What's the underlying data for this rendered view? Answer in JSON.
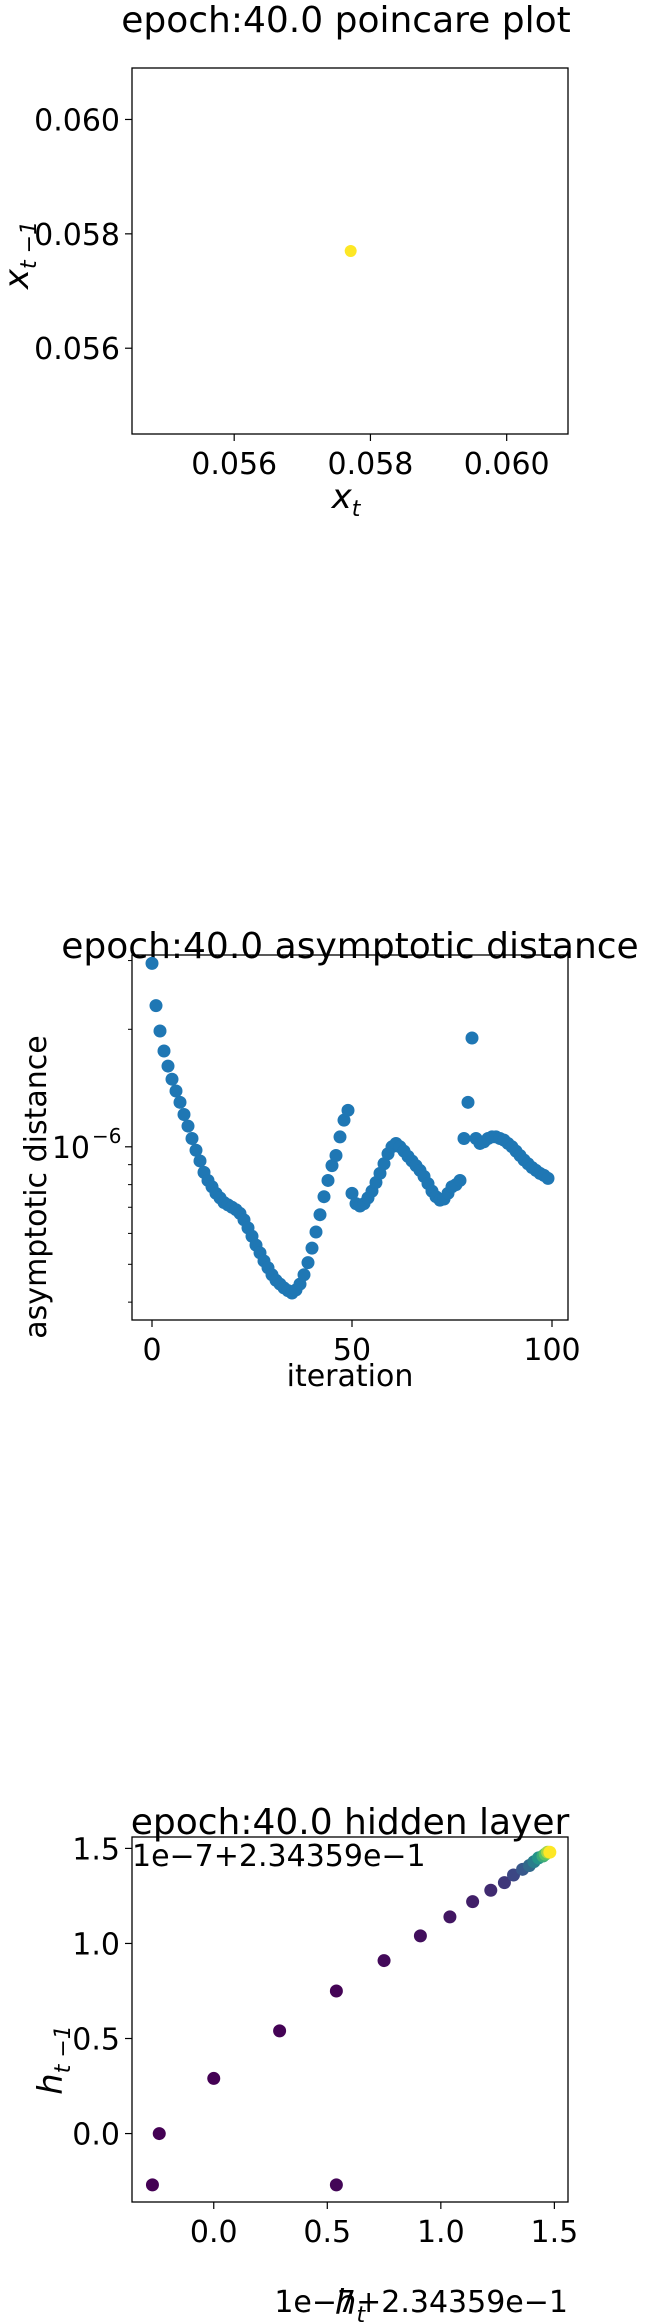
{
  "chart_data": [
    {
      "type": "scatter",
      "title": "epoch:40.0 poincare plot",
      "xlabel": "x_t",
      "ylabel": "x_{t-1}",
      "xlim": [
        0.0545,
        0.0609
      ],
      "ylim": [
        0.0545,
        0.0609
      ],
      "xticks": [
        {
          "value": 0.056,
          "label": "0.056"
        },
        {
          "value": 0.058,
          "label": "0.058"
        },
        {
          "value": 0.06,
          "label": "0.060"
        }
      ],
      "yticks": [
        {
          "value": 0.056,
          "label": "0.056"
        },
        {
          "value": 0.058,
          "label": "0.058"
        },
        {
          "value": 0.06,
          "label": "0.060"
        }
      ],
      "grid": false,
      "color": "#fde725",
      "points": [
        [
          0.05771,
          0.0577
        ]
      ]
    },
    {
      "type": "scatter",
      "title": "epoch:40.0 asymptotic distance",
      "xlabel": "iteration",
      "ylabel": "asymptotic distance",
      "yscale": "log",
      "xlim": [
        -5,
        104
      ],
      "ylim": [
        3.6e-07,
        3.1e-06
      ],
      "xticks": [
        {
          "value": 0,
          "label": "0"
        },
        {
          "value": 50,
          "label": "50"
        },
        {
          "value": 100,
          "label": "100"
        }
      ],
      "yticks": [
        {
          "value": 1e-06,
          "label": "10",
          "sup": "−6"
        }
      ],
      "yminor": [
        4e-07,
        5e-07,
        6e-07,
        7e-07,
        8e-07,
        9e-07,
        2e-06,
        3e-06
      ],
      "grid": false,
      "color": "#1f77b4",
      "x": [
        0,
        1,
        2,
        3,
        4,
        5,
        6,
        7,
        8,
        9,
        10,
        11,
        12,
        13,
        14,
        15,
        16,
        17,
        18,
        19,
        20,
        21,
        22,
        23,
        24,
        25,
        26,
        27,
        28,
        29,
        30,
        31,
        32,
        33,
        34,
        35,
        36,
        37,
        38,
        39,
        40,
        41,
        42,
        43,
        44,
        45,
        46,
        47,
        48,
        49,
        50,
        51,
        52,
        53,
        54,
        55,
        56,
        57,
        58,
        59,
        60,
        61,
        62,
        63,
        64,
        65,
        66,
        67,
        68,
        69,
        70,
        71,
        72,
        73,
        74,
        75,
        76,
        77,
        78,
        79,
        80,
        81,
        82,
        83,
        84,
        85,
        86,
        87,
        88,
        89,
        90,
        91,
        92,
        93,
        94,
        95,
        96,
        97,
        98,
        99
      ],
      "y": [
        2.95e-06,
        2.3e-06,
        1.98e-06,
        1.76e-06,
        1.61e-06,
        1.49e-06,
        1.39e-06,
        1.3e-06,
        1.21e-06,
        1.13e-06,
        1.05e-06,
        9.8e-07,
        9.2e-07,
        8.6e-07,
        8.2e-07,
        7.9e-07,
        7.6e-07,
        7.4e-07,
        7.2e-07,
        7.1e-07,
        7e-07,
        6.9e-07,
        6.75e-07,
        6.5e-07,
        6.2e-07,
        5.9e-07,
        5.6e-07,
        5.35e-07,
        5.1e-07,
        4.9e-07,
        4.7e-07,
        4.55e-07,
        4.45e-07,
        4.35e-07,
        4.28e-07,
        4.22e-07,
        4.3e-07,
        4.45e-07,
        4.7e-07,
        5.05e-07,
        5.5e-07,
        6.05e-07,
        6.7e-07,
        7.45e-07,
        8.2e-07,
        8.95e-07,
        9.5e-07,
        1.06e-06,
        1.17e-06,
        1.24e-06,
        7.6e-07,
        7.15e-07,
        7.05e-07,
        7.15e-07,
        7.4e-07,
        7.7e-07,
        8.1e-07,
        8.55e-07,
        9.05e-07,
        9.6e-07,
        1e-06,
        1.02e-06,
        1e-06,
        9.75e-07,
        9.45e-07,
        9.2e-07,
        8.95e-07,
        8.7e-07,
        8.4e-07,
        8.05e-07,
        7.7e-07,
        7.45e-07,
        7.3e-07,
        7.35e-07,
        7.6e-07,
        7.9e-07,
        8e-07,
        8.2e-07,
        1.05e-06,
        1.3e-06,
        1.9e-06,
        1.05e-06,
        1.02e-06,
        1.03e-06,
        1.05e-06,
        1.06e-06,
        1.06e-06,
        1.05e-06,
        1.04e-06,
        1.02e-06,
        1e-06,
        9.75e-07,
        9.5e-07,
        9.25e-07,
        9.05e-07,
        8.85e-07,
        8.7e-07,
        8.55e-07,
        8.45e-07,
        8.3e-07
      ]
    },
    {
      "type": "scatter",
      "title": "epoch:40.0 hidden layer",
      "xlabel": "h_t",
      "ylabel": "h_{t-1}",
      "y_offset_text": "1e−7+2.34359e−1",
      "x_offset_text": "1e−7+2.34359e−1",
      "xlim": [
        -0.36,
        1.56
      ],
      "ylim": [
        -0.36,
        1.56
      ],
      "xticks": [
        {
          "value": 0.0,
          "label": "0.0"
        },
        {
          "value": 0.5,
          "label": "0.5"
        },
        {
          "value": 1.0,
          "label": "1.0"
        },
        {
          "value": 1.5,
          "label": "1.5"
        }
      ],
      "yticks": [
        {
          "value": 0.0,
          "label": "0.0"
        },
        {
          "value": 0.5,
          "label": "0.5"
        },
        {
          "value": 1.0,
          "label": "1.0"
        },
        {
          "value": 1.5,
          "label": "1.5"
        }
      ],
      "grid": false,
      "colormap": [
        "#440154",
        "#3b528b",
        "#21918c",
        "#5ec962",
        "#fde725"
      ],
      "points": [
        [
          -0.27,
          -0.27
        ],
        [
          -0.24,
          0.0
        ],
        [
          0.0,
          0.29
        ],
        [
          0.29,
          0.54
        ],
        [
          0.54,
          0.75
        ],
        [
          0.54,
          -0.27
        ],
        [
          0.75,
          0.91
        ],
        [
          0.91,
          1.04
        ],
        [
          1.04,
          1.14
        ],
        [
          1.14,
          1.22
        ],
        [
          1.22,
          1.28
        ],
        [
          1.28,
          1.32
        ],
        [
          1.32,
          1.36
        ],
        [
          1.36,
          1.39
        ],
        [
          1.39,
          1.41
        ],
        [
          1.41,
          1.43
        ],
        [
          1.43,
          1.45
        ],
        [
          1.45,
          1.46
        ],
        [
          1.46,
          1.47
        ],
        [
          1.47,
          1.48
        ],
        [
          1.48,
          1.48
        ]
      ]
    }
  ]
}
